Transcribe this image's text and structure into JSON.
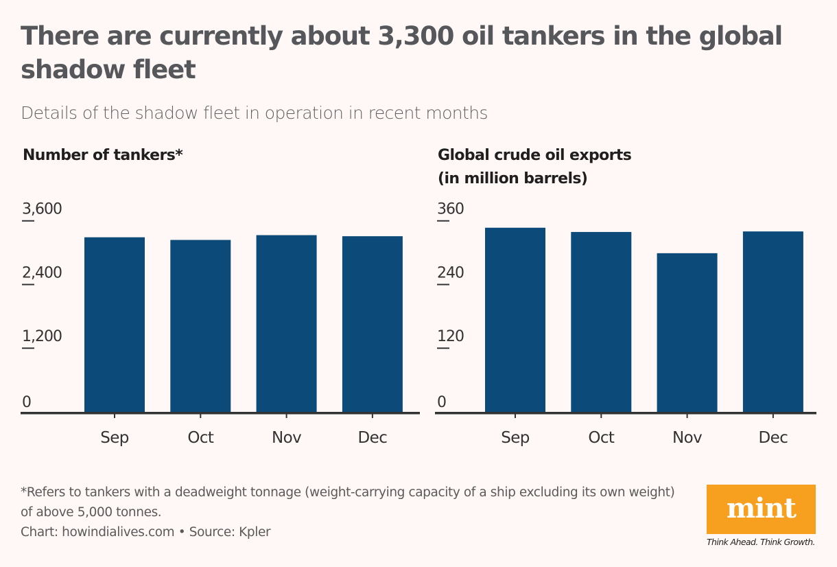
{
  "title": "There are currently about 3,300 oil tankers in the global shadow fleet",
  "subtitle": "Details of the shadow fleet in operation in recent months",
  "colors": {
    "bar": "#0c4a79",
    "background": "#fff8f7",
    "title": "#55575a",
    "axis": "#333333",
    "logo_bg": "#f7a020"
  },
  "chart_data": [
    {
      "type": "bar",
      "title": "Number of tankers*",
      "xlabel": "",
      "ylabel": "",
      "categories": [
        "Sep",
        "Oct",
        "Nov",
        "Dec"
      ],
      "values": [
        3290,
        3240,
        3330,
        3310
      ],
      "ylim": [
        0,
        3600
      ],
      "yticks": [
        0,
        1200,
        2400,
        3600
      ],
      "ytick_labels": [
        "0",
        "1,200",
        "2,400",
        "3,600"
      ],
      "grid": false,
      "legend": "none"
    },
    {
      "type": "bar",
      "title": "Global crude oil exports (in million barrels)",
      "title_lines": [
        "Global crude oil exports",
        "(in million barrels)"
      ],
      "xlabel": "",
      "ylabel": "",
      "categories": [
        "Sep",
        "Oct",
        "Nov",
        "Dec"
      ],
      "values": [
        347,
        339,
        299,
        340
      ],
      "ylim": [
        0,
        360
      ],
      "yticks": [
        0,
        120,
        240,
        360
      ],
      "ytick_labels": [
        "0",
        "120",
        "240",
        "360"
      ],
      "grid": false,
      "legend": "none"
    }
  ],
  "footnote": "*Refers to tankers with a deadweight tonnage (weight-carrying capacity of a ship excluding its own weight) of above 5,000 tonnes.",
  "source": "Chart: howindialives.com • Source: Kpler",
  "logo": {
    "text": "mint",
    "tagline": "Think Ahead. Think Growth."
  }
}
